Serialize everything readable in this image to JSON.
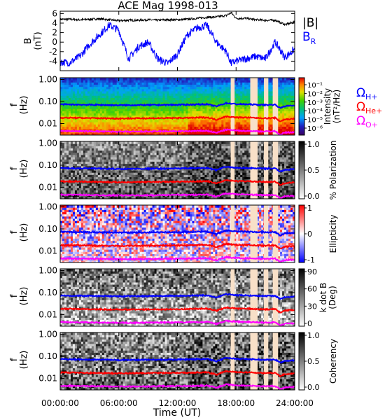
{
  "title": "ACE Mag 1998-013",
  "time_axis": {
    "label": "Time (UT)",
    "ticks": [
      "00:00:00",
      "06:00:00",
      "12:00:00",
      "18:00:00",
      "24:00:00"
    ],
    "range_hours": [
      0,
      24
    ]
  },
  "colors": {
    "B_total": "#000000",
    "B_R": "#0000ff",
    "omega_H": "#0000ff",
    "omega_He": "#ff0000",
    "omega_O": "#ff00ff",
    "gap": "#f8e0c8"
  },
  "chart_data": [
    {
      "type": "line",
      "ylabel": "B\n(nT)",
      "ylim": [
        -6,
        6.5
      ],
      "yticks": [
        "6",
        "4",
        "2",
        "0",
        "-2",
        "-4"
      ],
      "legend": [
        "|B|",
        "B_R"
      ],
      "series": [
        {
          "name": "|B|",
          "x": [
            0,
            1,
            2,
            3,
            4,
            5,
            6,
            7,
            8,
            9,
            10,
            11,
            12,
            13,
            14,
            15,
            16,
            17,
            17.5,
            18,
            19,
            20,
            21,
            22,
            23,
            24
          ],
          "values": [
            4.8,
            4.8,
            4.7,
            4.8,
            4.9,
            4.7,
            4.5,
            4.6,
            4.6,
            4.7,
            4.6,
            4.7,
            4.7,
            4.8,
            5.0,
            5.2,
            5.3,
            5.6,
            6.2,
            5.0,
            5.0,
            4.7,
            4.6,
            4.6,
            3.7,
            4.2
          ]
        },
        {
          "name": "B_R",
          "x": [
            0,
            1,
            2,
            3,
            4,
            5,
            6,
            7,
            8,
            9,
            10,
            11,
            12,
            13,
            14,
            15,
            16,
            17,
            17.5,
            18,
            19,
            20,
            21,
            22,
            23,
            24
          ],
          "values": [
            -4.2,
            -4.3,
            -3.0,
            -0.5,
            1.5,
            3.6,
            2.5,
            -3.5,
            -1.0,
            0.0,
            -3.5,
            -4.5,
            -2.5,
            1.5,
            3.0,
            3.5,
            0.0,
            -2.0,
            -4.5,
            -4.0,
            -3.5,
            -3.0,
            -3.5,
            0.0,
            -3.2,
            -1.5
          ]
        }
      ]
    },
    {
      "type": "heatmap",
      "name": "intensity",
      "ylabel": "f\n(Hz)",
      "yscale": "log",
      "ylim": [
        0.003,
        1.2
      ],
      "yticks": [
        "1.00",
        "0.10",
        "0.01"
      ],
      "colorbar": {
        "label": "Intensity\n(nT²/Hz)",
        "ticks": [
          "10⁻¹",
          "10⁻²",
          "10⁻³",
          "10⁻⁴",
          "10⁻⁵",
          "10⁻⁶"
        ],
        "colormap": "rainbow"
      },
      "gyro_labels": [
        "ΩH+",
        "ΩHe+",
        "ΩO+"
      ]
    },
    {
      "type": "heatmap",
      "name": "polarization",
      "ylabel": "f\n(Hz)",
      "yscale": "log",
      "yticks": [
        "1.00",
        "0.10",
        "0.01"
      ],
      "colorbar": {
        "label": "% Polarization",
        "ticks": [
          "1.0",
          "0.5",
          "0.0"
        ],
        "colormap": "gray"
      }
    },
    {
      "type": "heatmap",
      "name": "ellipticity",
      "ylabel": "f\n(Hz)",
      "yscale": "log",
      "yticks": [
        "1.00",
        "0.10",
        "0.01"
      ],
      "colorbar": {
        "label": "Ellipticity",
        "ticks": [
          "1",
          "0",
          "-1"
        ],
        "colormap": "blue-white-red"
      }
    },
    {
      "type": "heatmap",
      "name": "k_dot_b",
      "ylabel": "f\n(Hz)",
      "yscale": "log",
      "yticks": [
        "1.00",
        "0.10",
        "0.01"
      ],
      "colorbar": {
        "label": "k dot B\n(Deg)",
        "ticks": [
          "90",
          "60",
          "30",
          "0"
        ],
        "colormap": "gray-reversed"
      }
    },
    {
      "type": "heatmap",
      "name": "coherency",
      "ylabel": "f\n(Hz)",
      "yscale": "log",
      "yticks": [
        "1.00",
        "0.10",
        "0.01"
      ],
      "colorbar": {
        "label": "Coherency",
        "ticks": [
          "1.0",
          "0.5",
          "0.0"
        ],
        "colormap": "gray"
      }
    }
  ],
  "gyrofrequencies": {
    "x": [
      0,
      2,
      4,
      6,
      8,
      10,
      12,
      13,
      14,
      15,
      16,
      17,
      18,
      19,
      20,
      21,
      22,
      22.5,
      23,
      24
    ],
    "H_hz": [
      0.074,
      0.072,
      0.07,
      0.068,
      0.069,
      0.07,
      0.071,
      0.072,
      0.074,
      0.075,
      0.06,
      0.085,
      0.076,
      0.075,
      0.072,
      0.07,
      0.072,
      0.05,
      0.062,
      0.066
    ],
    "He_hz": [
      0.0185,
      0.018,
      0.0175,
      0.017,
      0.0173,
      0.0175,
      0.0178,
      0.018,
      0.0185,
      0.019,
      0.015,
      0.021,
      0.019,
      0.0188,
      0.018,
      0.0175,
      0.018,
      0.0125,
      0.0155,
      0.0165
    ],
    "O_hz": [
      0.0046,
      0.0045,
      0.0044,
      0.0043,
      0.0043,
      0.0044,
      0.0045,
      0.0045,
      0.0046,
      0.0047,
      0.0038,
      0.0053,
      0.0048,
      0.0047,
      0.0045,
      0.0044,
      0.0045,
      0.0031,
      0.0039,
      0.0041
    ]
  },
  "data_gaps_hours": [
    [
      17.45,
      17.85
    ],
    [
      19.45,
      20.2
    ],
    [
      20.85,
      21.3
    ],
    [
      21.75,
      22.3
    ]
  ]
}
